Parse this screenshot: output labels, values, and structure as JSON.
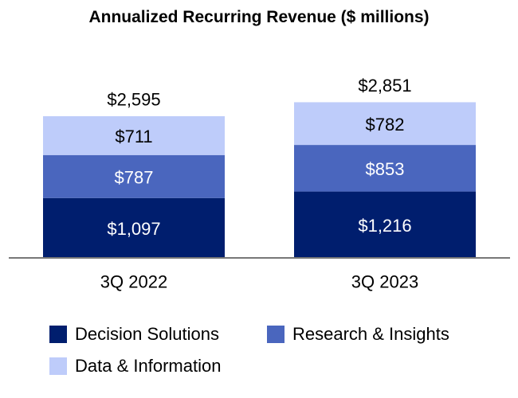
{
  "chart_data": {
    "type": "bar",
    "stacked": true,
    "title": "Annualized Recurring Revenue ($ millions)",
    "categories": [
      "3Q 2022",
      "3Q 2023"
    ],
    "series": [
      {
        "name": "Decision Solutions",
        "values": [
          1097,
          1216
        ],
        "labels": [
          "$1,097",
          "$1,216"
        ],
        "color": "#001E6E",
        "label_color": "#FFFFFF"
      },
      {
        "name": "Research & Insights",
        "values": [
          787,
          853
        ],
        "labels": [
          "$787",
          "$853"
        ],
        "color": "#4A66BE",
        "label_color": "#FFFFFF"
      },
      {
        "name": "Data & Information",
        "values": [
          711,
          782
        ],
        "labels": [
          "$711",
          "$782"
        ],
        "color": "#BECCFA",
        "label_color": "#000000"
      }
    ],
    "totals": [
      2595,
      2851
    ],
    "total_labels": [
      "$2,595",
      "$2,851"
    ],
    "ylim": [
      0,
      3300
    ],
    "xlabel": "",
    "ylabel": "",
    "legend_position": "bottom",
    "axis_color": "#777777"
  }
}
